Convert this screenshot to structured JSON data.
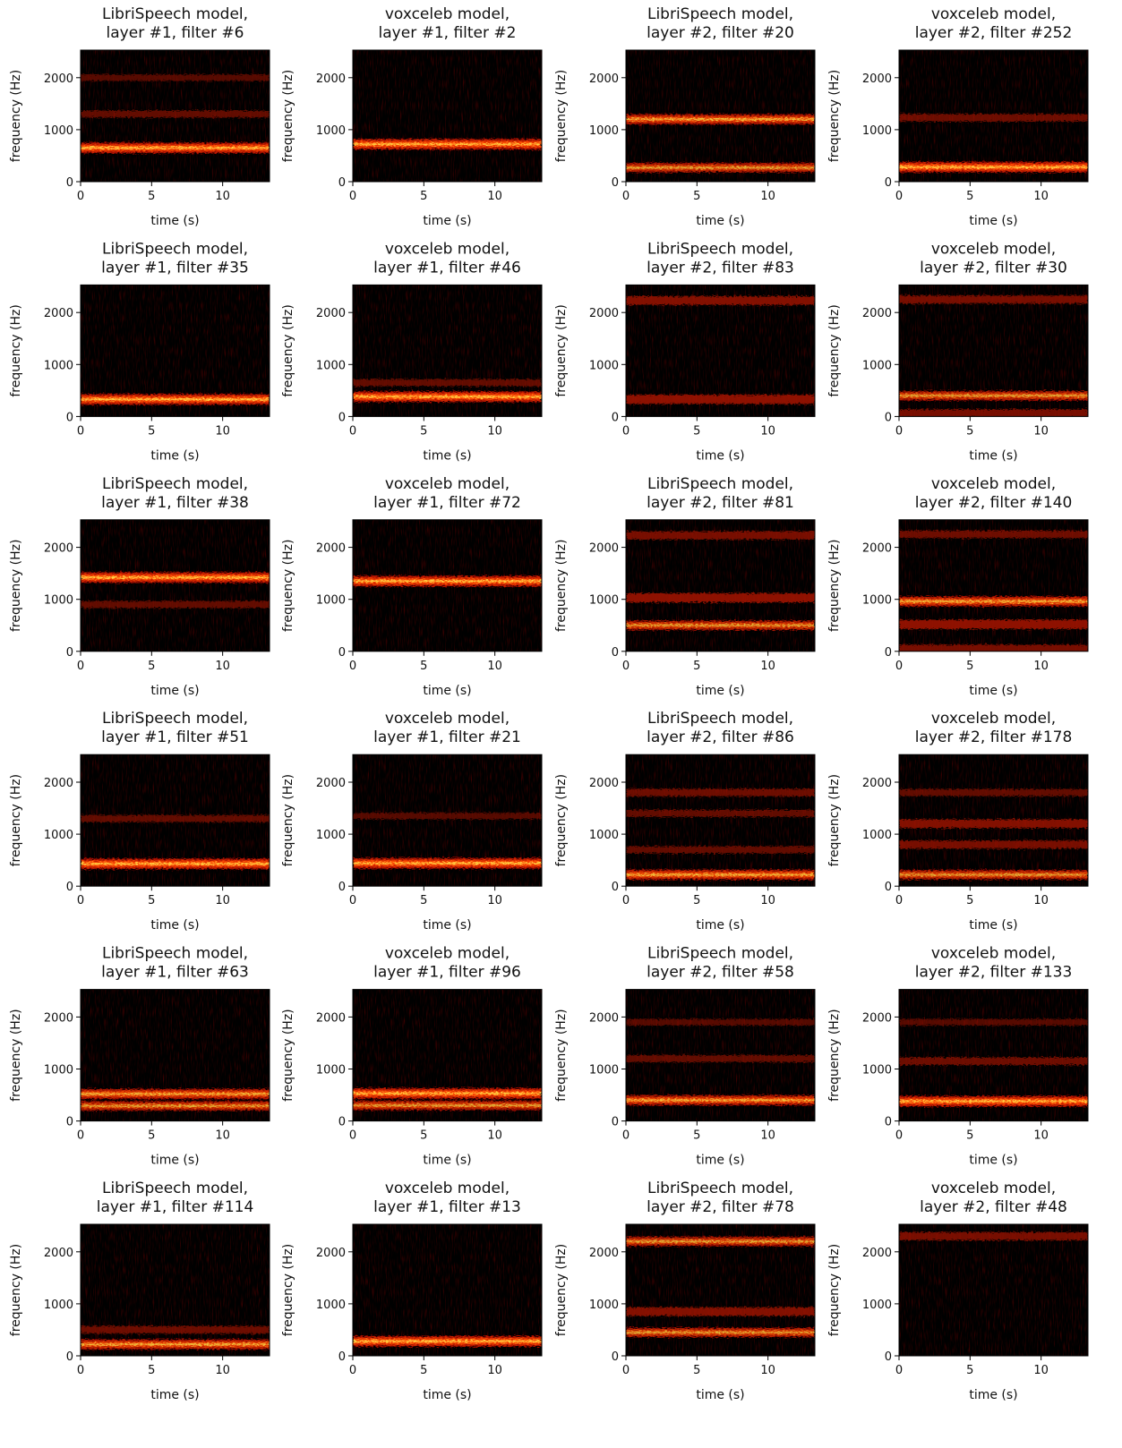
{
  "chart_data": [
    {
      "type": "heatmap",
      "title": [
        "LibriSpeech model,",
        "layer #1, filter #6"
      ],
      "xlabel": "time (s)",
      "ylabel": "frequency (Hz)",
      "xlim": [
        0,
        13.3
      ],
      "ylim": [
        0,
        2530
      ],
      "xticks": [
        0,
        5,
        10
      ],
      "yticks": [
        0,
        1000,
        2000
      ],
      "values": [
        650,
        1300,
        2000
      ],
      "levels": [
        1.0,
        0.3,
        0.2
      ]
    },
    {
      "type": "heatmap",
      "title": [
        "voxceleb model,",
        "layer #1, filter #2"
      ],
      "xlabel": "time (s)",
      "ylabel": "frequency (Hz)",
      "xlim": [
        0,
        13.3
      ],
      "ylim": [
        0,
        2530
      ],
      "xticks": [
        0,
        5,
        10
      ],
      "yticks": [
        0,
        1000,
        2000
      ],
      "values": [
        720
      ],
      "levels": [
        1.0
      ]
    },
    {
      "type": "heatmap",
      "title": [
        "LibriSpeech model,",
        "layer #2, filter #20"
      ],
      "xlabel": "time (s)",
      "ylabel": "frequency (Hz)",
      "xlim": [
        0,
        13.3
      ],
      "ylim": [
        0,
        2530
      ],
      "xticks": [
        0,
        5,
        10
      ],
      "yticks": [
        0,
        1000,
        2000
      ],
      "values": [
        1200,
        270
      ],
      "levels": [
        0.9,
        0.8
      ]
    },
    {
      "type": "heatmap",
      "title": [
        "voxceleb model,",
        "layer #2, filter #252"
      ],
      "xlabel": "time (s)",
      "ylabel": "frequency (Hz)",
      "xlim": [
        0,
        13.3
      ],
      "ylim": [
        0,
        2530
      ],
      "xticks": [
        0,
        5,
        10
      ],
      "yticks": [
        0,
        1000,
        2000
      ],
      "values": [
        280,
        1230
      ],
      "levels": [
        1.0,
        0.4
      ]
    },
    {
      "type": "heatmap",
      "title": [
        "LibriSpeech model,",
        "layer #1, filter #35"
      ],
      "xlabel": "time (s)",
      "ylabel": "frequency (Hz)",
      "xlim": [
        0,
        13.3
      ],
      "ylim": [
        0,
        2530
      ],
      "xticks": [
        0,
        5,
        10
      ],
      "yticks": [
        0,
        1000,
        2000
      ],
      "values": [
        330
      ],
      "levels": [
        1.0
      ]
    },
    {
      "type": "heatmap",
      "title": [
        "voxceleb model,",
        "layer #1, filter #46"
      ],
      "xlabel": "time (s)",
      "ylabel": "frequency (Hz)",
      "xlim": [
        0,
        13.3
      ],
      "ylim": [
        0,
        2530
      ],
      "xticks": [
        0,
        5,
        10
      ],
      "yticks": [
        0,
        1000,
        2000
      ],
      "values": [
        380,
        650
      ],
      "levels": [
        1.0,
        0.3
      ]
    },
    {
      "type": "heatmap",
      "title": [
        "LibriSpeech model,",
        "layer #2, filter #83"
      ],
      "xlabel": "time (s)",
      "ylabel": "frequency (Hz)",
      "xlim": [
        0,
        13.3
      ],
      "ylim": [
        0,
        2530
      ],
      "xticks": [
        0,
        5,
        10
      ],
      "yticks": [
        0,
        1000,
        2000
      ],
      "values": [
        2230,
        330
      ],
      "levels": [
        0.6,
        0.7
      ]
    },
    {
      "type": "heatmap",
      "title": [
        "voxceleb model,",
        "layer #2, filter #30"
      ],
      "xlabel": "time (s)",
      "ylabel": "frequency (Hz)",
      "xlim": [
        0,
        13.3
      ],
      "ylim": [
        0,
        2530
      ],
      "xticks": [
        0,
        5,
        10
      ],
      "yticks": [
        0,
        1000,
        2000
      ],
      "values": [
        2250,
        400,
        60
      ],
      "levels": [
        0.5,
        0.8,
        0.5
      ]
    },
    {
      "type": "heatmap",
      "title": [
        "LibriSpeech model,",
        "layer #1, filter #38"
      ],
      "xlabel": "time (s)",
      "ylabel": "frequency (Hz)",
      "xlim": [
        0,
        13.3
      ],
      "ylim": [
        0,
        2530
      ],
      "xticks": [
        0,
        5,
        10
      ],
      "yticks": [
        0,
        1000,
        2000
      ],
      "values": [
        1420,
        900
      ],
      "levels": [
        1.0,
        0.3
      ]
    },
    {
      "type": "heatmap",
      "title": [
        "voxceleb model,",
        "layer #1, filter #72"
      ],
      "xlabel": "time (s)",
      "ylabel": "frequency (Hz)",
      "xlim": [
        0,
        13.3
      ],
      "ylim": [
        0,
        2530
      ],
      "xticks": [
        0,
        5,
        10
      ],
      "yticks": [
        0,
        1000,
        2000
      ],
      "values": [
        1350
      ],
      "levels": [
        1.0
      ]
    },
    {
      "type": "heatmap",
      "title": [
        "LibriSpeech model,",
        "layer #2, filter #81"
      ],
      "xlabel": "time (s)",
      "ylabel": "frequency (Hz)",
      "xlim": [
        0,
        13.3
      ],
      "ylim": [
        0,
        2530
      ],
      "xticks": [
        0,
        5,
        10
      ],
      "yticks": [
        0,
        1000,
        2000
      ],
      "values": [
        2230,
        1030,
        500
      ],
      "levels": [
        0.5,
        0.7,
        0.8
      ]
    },
    {
      "type": "heatmap",
      "title": [
        "voxceleb model,",
        "layer #2, filter #140"
      ],
      "xlabel": "time (s)",
      "ylabel": "frequency (Hz)",
      "xlim": [
        0,
        13.3
      ],
      "ylim": [
        0,
        2530
      ],
      "xticks": [
        0,
        5,
        10
      ],
      "yticks": [
        0,
        1000,
        2000
      ],
      "values": [
        2250,
        960,
        520,
        50
      ],
      "levels": [
        0.4,
        0.9,
        0.7,
        0.5
      ]
    },
    {
      "type": "heatmap",
      "title": [
        "LibriSpeech model,",
        "layer #1, filter #51"
      ],
      "xlabel": "time (s)",
      "ylabel": "frequency (Hz)",
      "xlim": [
        0,
        13.3
      ],
      "ylim": [
        0,
        2530
      ],
      "xticks": [
        0,
        5,
        10
      ],
      "yticks": [
        0,
        1000,
        2000
      ],
      "values": [
        430,
        1300
      ],
      "levels": [
        1.0,
        0.3
      ]
    },
    {
      "type": "heatmap",
      "title": [
        "voxceleb model,",
        "layer #1, filter #21"
      ],
      "xlabel": "time (s)",
      "ylabel": "frequency (Hz)",
      "xlim": [
        0,
        13.3
      ],
      "ylim": [
        0,
        2530
      ],
      "xticks": [
        0,
        5,
        10
      ],
      "yticks": [
        0,
        1000,
        2000
      ],
      "values": [
        440,
        1350
      ],
      "levels": [
        1.0,
        0.2
      ]
    },
    {
      "type": "heatmap",
      "title": [
        "LibriSpeech model,",
        "layer #2, filter #86"
      ],
      "xlabel": "time (s)",
      "ylabel": "frequency (Hz)",
      "xlim": [
        0,
        13.3
      ],
      "ylim": [
        0,
        2530
      ],
      "xticks": [
        0,
        5,
        10
      ],
      "yticks": [
        0,
        1000,
        2000
      ],
      "values": [
        220,
        1800,
        1400,
        700
      ],
      "levels": [
        0.9,
        0.4,
        0.3,
        0.3
      ]
    },
    {
      "type": "heatmap",
      "title": [
        "voxceleb model,",
        "layer #2, filter #178"
      ],
      "xlabel": "time (s)",
      "ylabel": "frequency (Hz)",
      "xlim": [
        0,
        13.3
      ],
      "ylim": [
        0,
        2530
      ],
      "xticks": [
        0,
        5,
        10
      ],
      "yticks": [
        0,
        1000,
        2000
      ],
      "values": [
        1200,
        800,
        220,
        1800
      ],
      "levels": [
        0.6,
        0.5,
        0.8,
        0.3
      ]
    },
    {
      "type": "heatmap",
      "title": [
        "LibriSpeech model,",
        "layer #1, filter #63"
      ],
      "xlabel": "time (s)",
      "ylabel": "frequency (Hz)",
      "xlim": [
        0,
        13.3
      ],
      "ylim": [
        0,
        2530
      ],
      "xticks": [
        0,
        5,
        10
      ],
      "yticks": [
        0,
        1000,
        2000
      ],
      "values": [
        520,
        290
      ],
      "levels": [
        0.9,
        0.8
      ]
    },
    {
      "type": "heatmap",
      "title": [
        "voxceleb model,",
        "layer #1, filter #96"
      ],
      "xlabel": "time (s)",
      "ylabel": "frequency (Hz)",
      "xlim": [
        0,
        13.3
      ],
      "ylim": [
        0,
        2530
      ],
      "xticks": [
        0,
        5,
        10
      ],
      "yticks": [
        0,
        1000,
        2000
      ],
      "values": [
        530,
        300
      ],
      "levels": [
        1.0,
        0.8
      ]
    },
    {
      "type": "heatmap",
      "title": [
        "LibriSpeech model,",
        "layer #2, filter #58"
      ],
      "xlabel": "time (s)",
      "ylabel": "frequency (Hz)",
      "xlim": [
        0,
        13.3
      ],
      "ylim": [
        0,
        2530
      ],
      "xticks": [
        0,
        5,
        10
      ],
      "yticks": [
        0,
        1000,
        2000
      ],
      "values": [
        400,
        1200,
        1900
      ],
      "levels": [
        0.9,
        0.3,
        0.2
      ]
    },
    {
      "type": "heatmap",
      "title": [
        "voxceleb model,",
        "layer #2, filter #133"
      ],
      "xlabel": "time (s)",
      "ylabel": "frequency (Hz)",
      "xlim": [
        0,
        13.3
      ],
      "ylim": [
        0,
        2530
      ],
      "xticks": [
        0,
        5,
        10
      ],
      "yticks": [
        0,
        1000,
        2000
      ],
      "values": [
        380,
        1150,
        1900
      ],
      "levels": [
        1.0,
        0.4,
        0.2
      ]
    },
    {
      "type": "heatmap",
      "title": [
        "LibriSpeech model,",
        "layer #1, filter #114"
      ],
      "xlabel": "time (s)",
      "ylabel": "frequency (Hz)",
      "xlim": [
        0,
        13.3
      ],
      "ylim": [
        0,
        2530
      ],
      "xticks": [
        0,
        5,
        10
      ],
      "yticks": [
        0,
        1000,
        2000
      ],
      "values": [
        220,
        500
      ],
      "levels": [
        0.9,
        0.4
      ]
    },
    {
      "type": "heatmap",
      "title": [
        "voxceleb model,",
        "layer #1, filter #13"
      ],
      "xlabel": "time (s)",
      "ylabel": "frequency (Hz)",
      "xlim": [
        0,
        13.3
      ],
      "ylim": [
        0,
        2530
      ],
      "xticks": [
        0,
        5,
        10
      ],
      "yticks": [
        0,
        1000,
        2000
      ],
      "values": [
        280
      ],
      "levels": [
        1.0
      ]
    },
    {
      "type": "heatmap",
      "title": [
        "LibriSpeech model,",
        "layer #2, filter #78"
      ],
      "xlabel": "time (s)",
      "ylabel": "frequency (Hz)",
      "xlim": [
        0,
        13.3
      ],
      "ylim": [
        0,
        2530
      ],
      "xticks": [
        0,
        5,
        10
      ],
      "yticks": [
        0,
        1000,
        2000
      ],
      "values": [
        2200,
        850,
        450
      ],
      "levels": [
        0.8,
        0.6,
        0.8
      ]
    },
    {
      "type": "heatmap",
      "title": [
        "voxceleb model,",
        "layer #2, filter #48"
      ],
      "xlabel": "time (s)",
      "ylabel": "frequency (Hz)",
      "xlim": [
        0,
        13.3
      ],
      "ylim": [
        0,
        2530
      ],
      "xticks": [
        0,
        5,
        10
      ],
      "yticks": [
        0,
        1000,
        2000
      ],
      "values": [
        2300
      ],
      "levels": [
        0.5
      ]
    }
  ]
}
